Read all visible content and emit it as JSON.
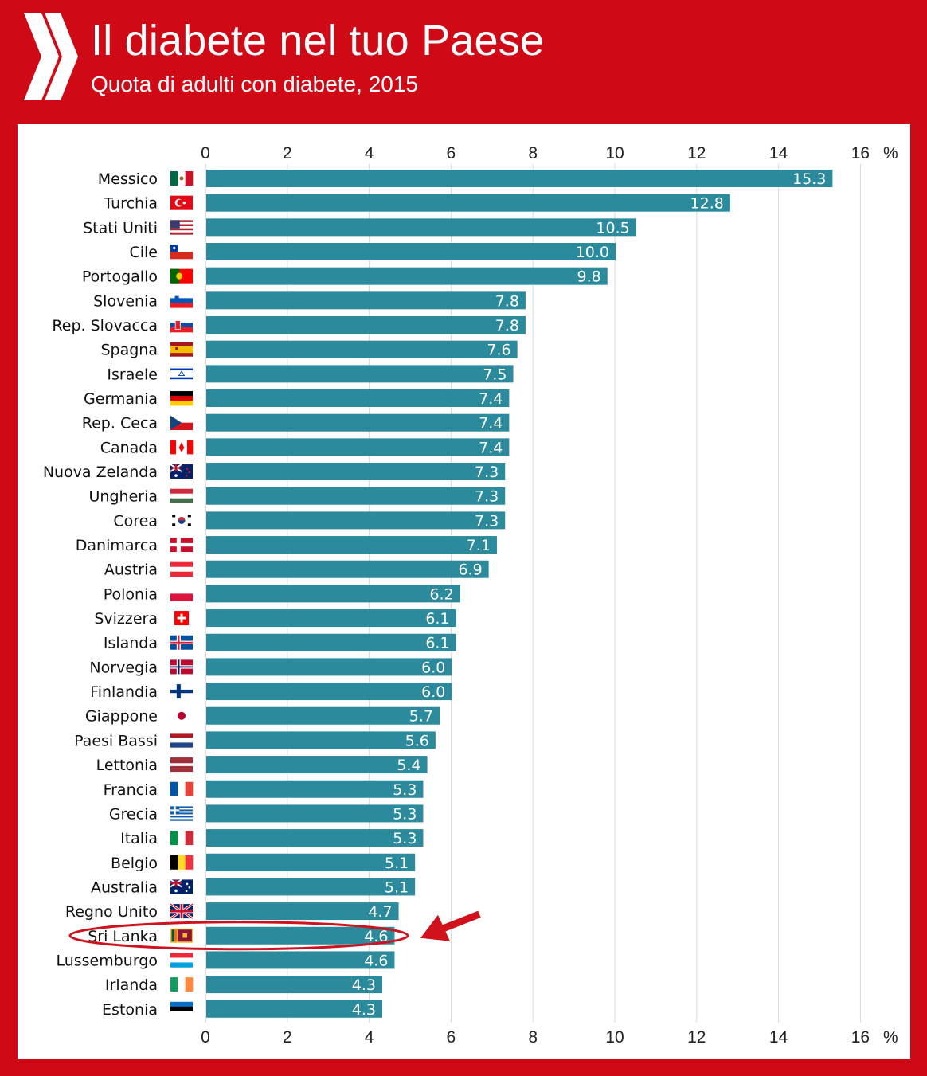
{
  "header": {
    "title": "Il diabete nel tuo Paese",
    "subtitle": "Quota di adulti con diabete, 2015"
  },
  "colors": {
    "background": "#cf0a16",
    "bar": "#2b8a9b",
    "highlight": "#d0121c"
  },
  "chart_data": {
    "type": "bar",
    "orientation": "horizontal",
    "title": "Il diabete nel tuo Paese",
    "subtitle": "Quota di adulti con diabete, 2015",
    "unit_label": "%",
    "xlim": [
      0,
      16
    ],
    "ticks": [
      0,
      2,
      4,
      6,
      8,
      10,
      12,
      14,
      16
    ],
    "grid": true,
    "axis_position": "top and bottom",
    "highlighted_category": "Sri Lanka",
    "categories": [
      "Messico",
      "Turchia",
      "Stati Uniti",
      "Cile",
      "Portogallo",
      "Slovenia",
      "Rep. Slovacca",
      "Spagna",
      "Israele",
      "Germania",
      "Rep. Ceca",
      "Canada",
      "Nuova Zelanda",
      "Ungheria",
      "Corea",
      "Danimarca",
      "Austria",
      "Polonia",
      "Svizzera",
      "Islanda",
      "Norvegia",
      "Finlandia",
      "Giappone",
      "Paesi Bassi",
      "Lettonia",
      "Francia",
      "Grecia",
      "Italia",
      "Belgio",
      "Australia",
      "Regno Unito",
      "Sri Lanka",
      "Lussemburgo",
      "Irlanda",
      "Estonia"
    ],
    "values": [
      15.3,
      12.8,
      10.5,
      10.0,
      9.8,
      7.8,
      7.8,
      7.6,
      7.5,
      7.4,
      7.4,
      7.4,
      7.3,
      7.3,
      7.3,
      7.1,
      6.9,
      6.2,
      6.1,
      6.1,
      6.0,
      6.0,
      5.7,
      5.6,
      5.4,
      5.3,
      5.3,
      5.3,
      5.1,
      5.1,
      4.7,
      4.6,
      4.6,
      4.3,
      4.3
    ],
    "value_labels": [
      "15.3",
      "12.8",
      "10.5",
      "10.0",
      "9.8",
      "7.8",
      "7.8",
      "7.6",
      "7.5",
      "7.4",
      "7.4",
      "7.4",
      "7.3",
      "7.3",
      "7.3",
      "7.1",
      "6.9",
      "6.2",
      "6.1",
      "6.1",
      "6.0",
      "6.0",
      "5.7",
      "5.6",
      "5.4",
      "5.3",
      "5.3",
      "5.3",
      "5.1",
      "5.1",
      "4.7",
      "4.6",
      "4.6",
      "4.3",
      "4.3"
    ],
    "flag_icons": [
      "flag-mexico-icon",
      "flag-turkey-icon",
      "flag-usa-icon",
      "flag-chile-icon",
      "flag-portugal-icon",
      "flag-slovenia-icon",
      "flag-slovakia-icon",
      "flag-spain-icon",
      "flag-israel-icon",
      "flag-germany-icon",
      "flag-czechia-icon",
      "flag-canada-icon",
      "flag-new-zealand-icon",
      "flag-hungary-icon",
      "flag-korea-icon",
      "flag-denmark-icon",
      "flag-austria-icon",
      "flag-poland-icon",
      "flag-switzerland-icon",
      "flag-iceland-icon",
      "flag-norway-icon",
      "flag-finland-icon",
      "flag-japan-icon",
      "flag-netherlands-icon",
      "flag-latvia-icon",
      "flag-france-icon",
      "flag-greece-icon",
      "flag-italy-icon",
      "flag-belgium-icon",
      "flag-australia-icon",
      "flag-uk-icon",
      "flag-sri-lanka-icon",
      "flag-luxembourg-icon",
      "flag-ireland-icon",
      "flag-estonia-icon"
    ]
  }
}
